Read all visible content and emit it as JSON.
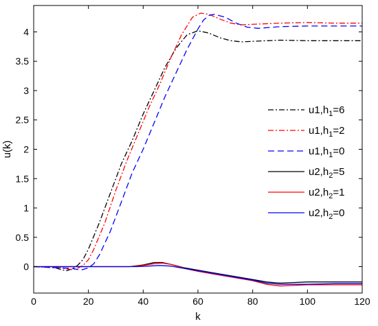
{
  "chart_data": {
    "type": "line",
    "xlabel": "k",
    "ylabel": "u(k)",
    "xlim": [
      0,
      120
    ],
    "ylim": [
      -0.45,
      4.45
    ],
    "xticks": [
      "0",
      "20",
      "40",
      "60",
      "80",
      "100",
      "120"
    ],
    "yticks": [
      "0",
      "0.5",
      "1",
      "1.5",
      "2",
      "2.5",
      "3",
      "3.5",
      "4"
    ],
    "grid": false,
    "legend_position": "right",
    "series": [
      {
        "name": "u1,h1=6",
        "label_main": "u1,h",
        "label_sub": "1",
        "label_tail": "=6",
        "color": "#000000",
        "dash": "dashdot",
        "x": [
          0,
          8,
          10,
          12,
          14,
          16,
          18,
          20,
          24,
          28,
          32,
          36,
          40,
          44,
          48,
          52,
          56,
          60,
          64,
          68,
          72,
          76,
          80,
          90,
          100,
          110,
          120
        ],
        "y": [
          0,
          -0.02,
          -0.05,
          -0.07,
          -0.04,
          0.02,
          0.12,
          0.3,
          0.75,
          1.25,
          1.75,
          2.15,
          2.6,
          3.0,
          3.4,
          3.72,
          3.95,
          4.02,
          3.98,
          3.9,
          3.85,
          3.83,
          3.84,
          3.86,
          3.85,
          3.85,
          3.85
        ]
      },
      {
        "name": "u1,h1=2",
        "label_main": "u1,h",
        "label_sub": "1",
        "label_tail": "=2",
        "color": "#ff0000",
        "dash": "dashdot",
        "x": [
          0,
          10,
          12,
          14,
          16,
          18,
          20,
          22,
          26,
          30,
          34,
          38,
          42,
          46,
          50,
          54,
          58,
          61,
          64,
          68,
          72,
          76,
          80,
          90,
          100,
          110,
          120
        ],
        "y": [
          0,
          -0.02,
          -0.04,
          -0.05,
          -0.03,
          0.02,
          0.12,
          0.3,
          0.75,
          1.3,
          1.8,
          2.25,
          2.7,
          3.1,
          3.55,
          3.95,
          4.25,
          4.32,
          4.3,
          4.22,
          4.15,
          4.12,
          4.13,
          4.15,
          4.16,
          4.15,
          4.15
        ]
      },
      {
        "name": "u1,h1=0",
        "label_main": "u1,h",
        "label_sub": "1",
        "label_tail": "=0",
        "color": "#0000ff",
        "dash": "dashed",
        "x": [
          0,
          14,
          16,
          18,
          20,
          22,
          24,
          28,
          32,
          36,
          40,
          44,
          48,
          52,
          56,
          60,
          62,
          64,
          66,
          70,
          74,
          78,
          82,
          90,
          100,
          110,
          120
        ],
        "y": [
          0,
          -0.03,
          -0.05,
          -0.05,
          -0.02,
          0.05,
          0.2,
          0.6,
          1.1,
          1.6,
          2.0,
          2.45,
          2.9,
          3.3,
          3.7,
          4.05,
          4.2,
          4.28,
          4.3,
          4.25,
          4.15,
          4.08,
          4.06,
          4.09,
          4.1,
          4.1,
          4.1
        ]
      },
      {
        "name": "u2,h2=5",
        "label_main": "u2,h",
        "label_sub": "2",
        "label_tail": "=5",
        "color": "#000000",
        "dash": "solid",
        "x": [
          0,
          35,
          40,
          44,
          47,
          50,
          55,
          60,
          65,
          70,
          75,
          80,
          85,
          90,
          95,
          100,
          110,
          120
        ],
        "y": [
          0,
          0,
          0.03,
          0.07,
          0.07,
          0.04,
          -0.02,
          -0.06,
          -0.1,
          -0.14,
          -0.18,
          -0.22,
          -0.26,
          -0.28,
          -0.27,
          -0.26,
          -0.26,
          -0.26
        ]
      },
      {
        "name": "u2,h2=1",
        "label_main": "u2,h",
        "label_sub": "2",
        "label_tail": "=1",
        "color": "#ff0000",
        "dash": "solid",
        "x": [
          0,
          35,
          40,
          44,
          47,
          50,
          55,
          60,
          65,
          70,
          75,
          80,
          85,
          90,
          95,
          100,
          110,
          120
        ],
        "y": [
          0,
          0,
          0.02,
          0.05,
          0.06,
          0.04,
          -0.03,
          -0.08,
          -0.12,
          -0.16,
          -0.2,
          -0.24,
          -0.3,
          -0.33,
          -0.32,
          -0.31,
          -0.31,
          -0.31
        ]
      },
      {
        "name": "u2,h2=0",
        "label_main": "u2,h",
        "label_sub": "2",
        "label_tail": "=0",
        "color": "#0000ff",
        "dash": "solid",
        "x": [
          0,
          38,
          42,
          46,
          50,
          55,
          60,
          65,
          70,
          75,
          80,
          85,
          90,
          95,
          100,
          110,
          120
        ],
        "y": [
          0,
          0,
          0.01,
          0.02,
          0.01,
          -0.03,
          -0.07,
          -0.11,
          -0.15,
          -0.19,
          -0.23,
          -0.28,
          -0.3,
          -0.3,
          -0.3,
          -0.29,
          -0.29
        ]
      }
    ]
  }
}
